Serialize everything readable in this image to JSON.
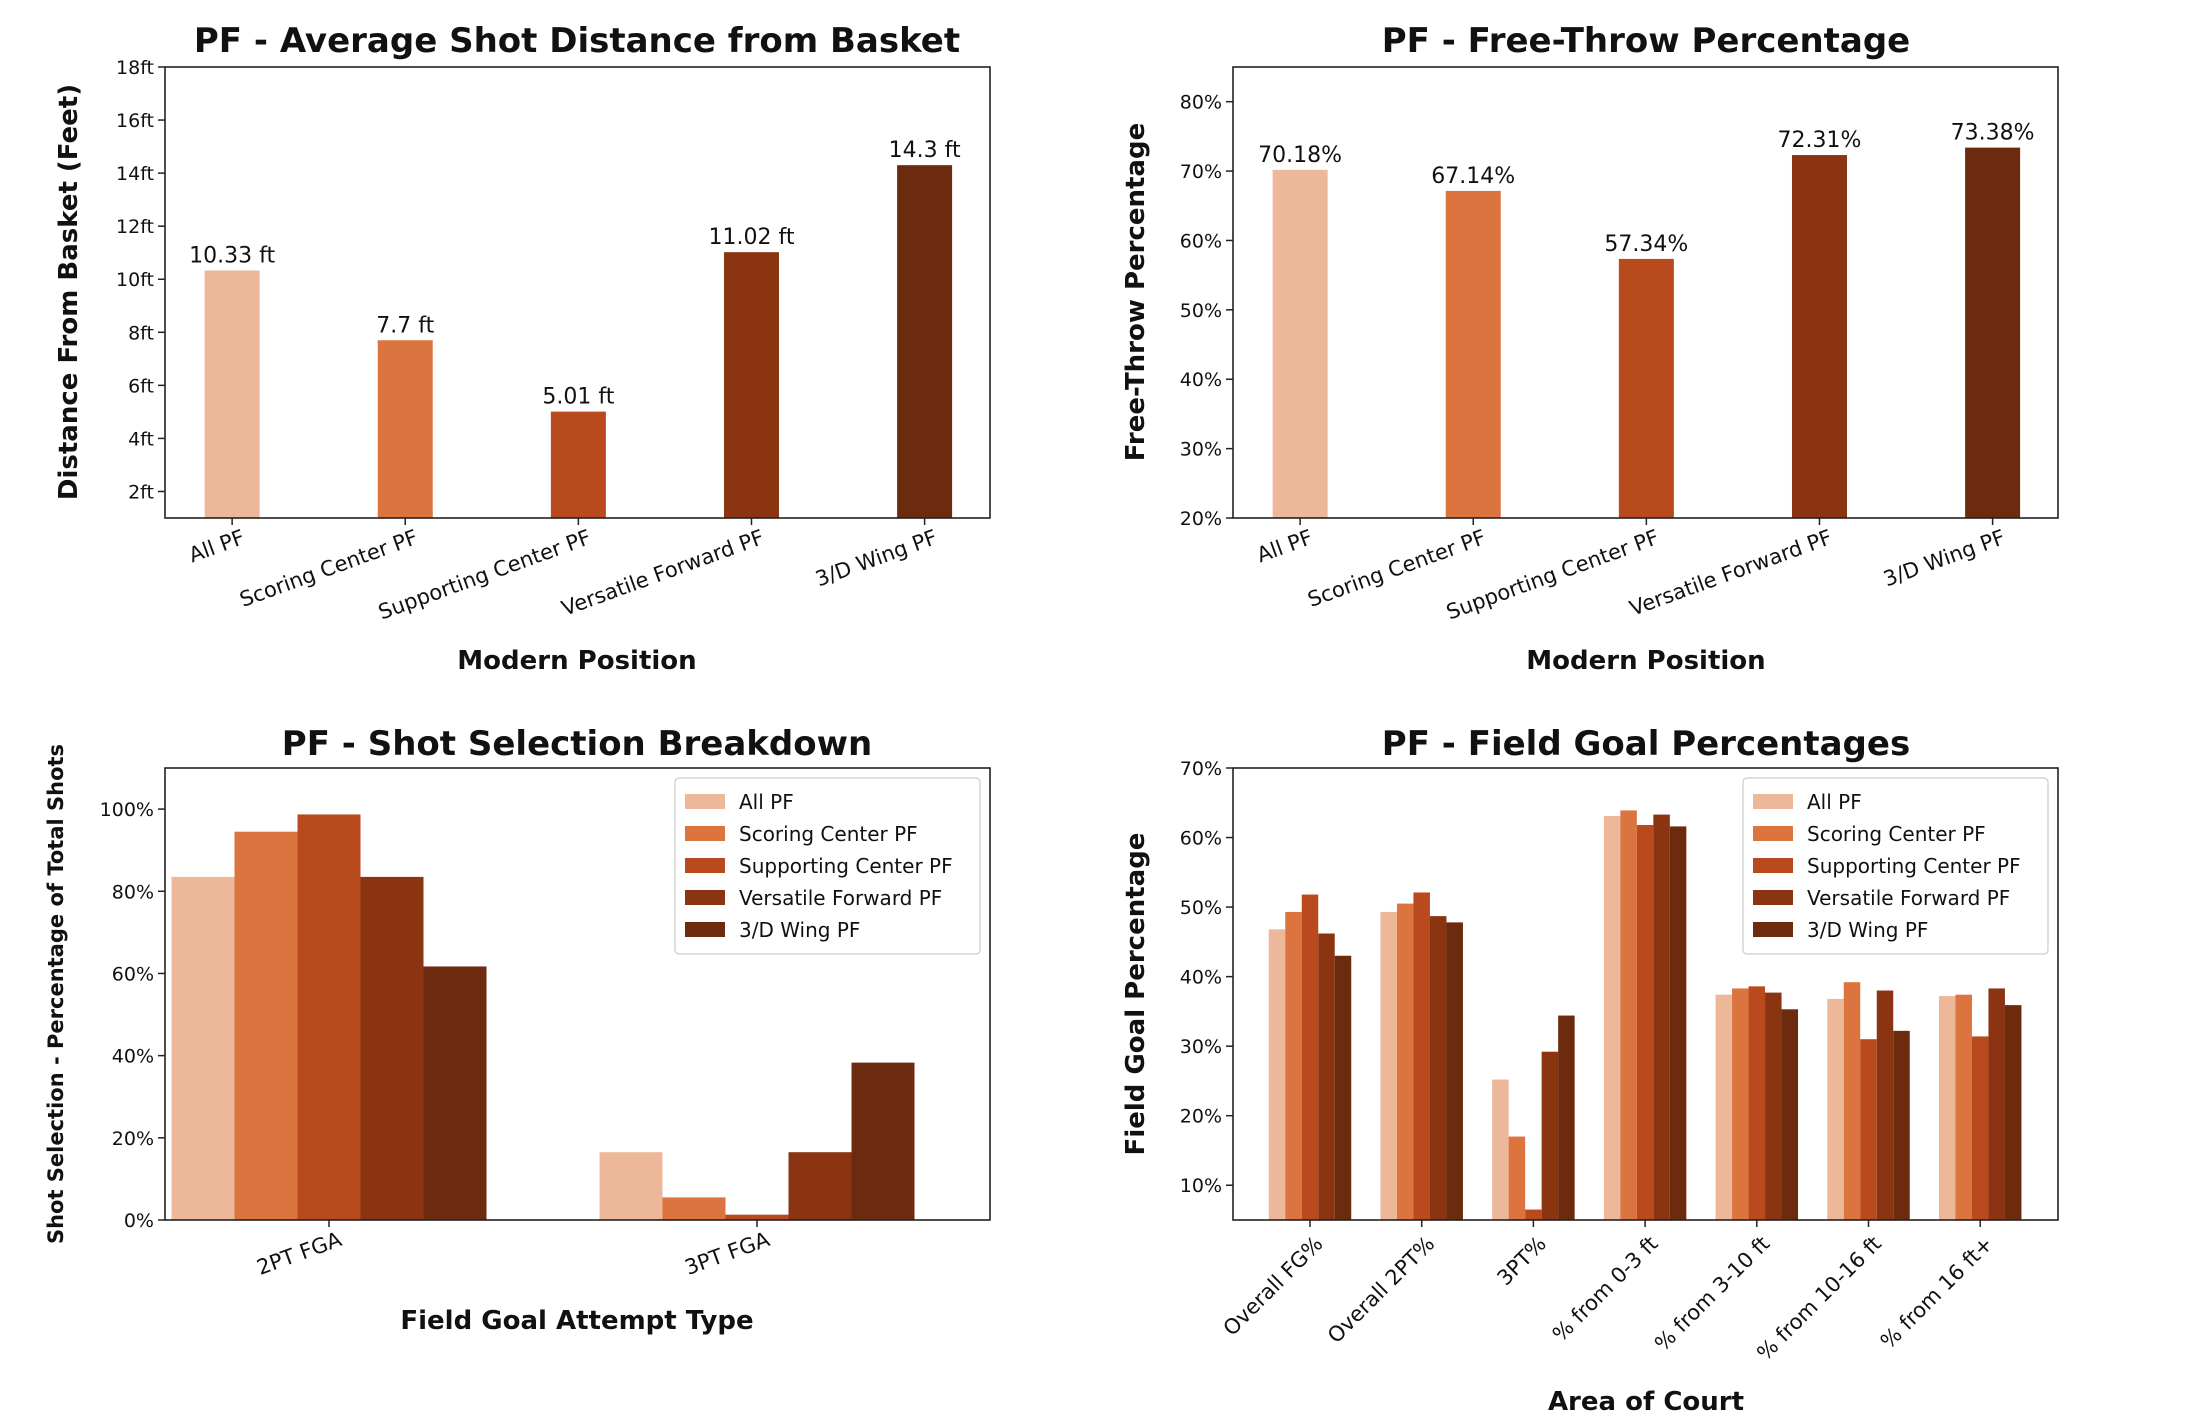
{
  "chart_data": [
    {
      "type": "bar",
      "title": "PF - Average Shot Distance from Basket",
      "xlabel": "Modern Position",
      "ylabel": "Distance From Basket (Feet)",
      "categories": [
        "All PF",
        "Scoring Center PF",
        "Supporting Center PF",
        "Versatile Forward PF",
        "3/D Wing PF"
      ],
      "values": [
        10.33,
        7.7,
        5.01,
        11.02,
        14.3
      ],
      "data_labels": [
        "10.33 ft",
        "7.7 ft",
        "5.01 ft",
        "11.02 ft",
        "14.3 ft"
      ],
      "ylim": [
        1,
        18
      ],
      "yticks": [
        2,
        4,
        6,
        8,
        10,
        12,
        14,
        16,
        18
      ],
      "ytick_labels": [
        "2ft",
        "4ft",
        "6ft",
        "8ft",
        "10ft",
        "12ft",
        "14ft",
        "16ft",
        "18ft"
      ],
      "colors": [
        "#edb899",
        "#dc743f",
        "#b84a1d",
        "#8a3412",
        "#6c2b0e"
      ],
      "grid": false
    },
    {
      "type": "bar",
      "title": "PF - Free-Throw Percentage",
      "xlabel": "Modern Position",
      "ylabel": "Free-Throw Percentage",
      "categories": [
        "All PF",
        "Scoring Center PF",
        "Supporting Center PF",
        "Versatile Forward PF",
        "3/D Wing PF"
      ],
      "values": [
        70.18,
        67.14,
        57.34,
        72.31,
        73.38
      ],
      "data_labels": [
        "70.18%",
        "67.14%",
        "57.34%",
        "72.31%",
        "73.38%"
      ],
      "ylim": [
        20,
        85
      ],
      "yticks": [
        20,
        30,
        40,
        50,
        60,
        70,
        80
      ],
      "ytick_labels": [
        "20%",
        "30%",
        "40%",
        "50%",
        "60%",
        "70%",
        "80%"
      ],
      "colors": [
        "#edb899",
        "#dc743f",
        "#b84a1d",
        "#8a3412",
        "#6c2b0e"
      ],
      "grid": false
    },
    {
      "type": "bar",
      "title": "PF - Shot Selection Breakdown",
      "xlabel": "Field Goal Attempt Type",
      "ylabel": "Shot Selection - Percentage of Total Shots",
      "categories": [
        "2PT FGA",
        "3PT FGA"
      ],
      "series": [
        {
          "name": "All PF",
          "values": [
            83.5,
            16.5
          ],
          "color": "#edb899"
        },
        {
          "name": "Scoring Center PF",
          "values": [
            94.5,
            5.5
          ],
          "color": "#dc743f"
        },
        {
          "name": "Supporting Center PF",
          "values": [
            98.7,
            1.3
          ],
          "color": "#b84a1d"
        },
        {
          "name": "Versatile Forward PF",
          "values": [
            83.5,
            16.5
          ],
          "color": "#8a3412"
        },
        {
          "name": "3/D Wing PF",
          "values": [
            61.7,
            38.3
          ],
          "color": "#6c2b0e"
        }
      ],
      "ylim": [
        0,
        110
      ],
      "yticks": [
        0,
        20,
        40,
        60,
        80,
        100
      ],
      "ytick_labels": [
        "0%",
        "20%",
        "40%",
        "60%",
        "80%",
        "100%"
      ],
      "legend": "top-right",
      "grid": false
    },
    {
      "type": "bar",
      "title": "PF - Field Goal Percentages",
      "xlabel": "Area of Court",
      "ylabel": "Field Goal Percentage",
      "categories": [
        "Overall FG%",
        "Overall 2PT%",
        "3PT%",
        "% from 0-3 ft",
        "% from 3-10 ft",
        "% from 10-16 ft",
        "% from 16 ft+"
      ],
      "series": [
        {
          "name": "All PF",
          "values": [
            46.8,
            49.3,
            25.2,
            63.1,
            37.4,
            36.8,
            37.2
          ],
          "color": "#edb899"
        },
        {
          "name": "Scoring Center PF",
          "values": [
            49.3,
            50.5,
            17.0,
            63.9,
            38.3,
            39.2,
            37.4
          ],
          "color": "#dc743f"
        },
        {
          "name": "Supporting Center PF",
          "values": [
            51.8,
            52.1,
            6.5,
            61.8,
            38.6,
            31.0,
            31.4
          ],
          "color": "#b84a1d"
        },
        {
          "name": "Versatile Forward PF",
          "values": [
            46.2,
            48.7,
            29.2,
            63.3,
            37.7,
            38.0,
            38.3
          ],
          "color": "#8a3412"
        },
        {
          "name": "3/D Wing PF",
          "values": [
            43.0,
            47.8,
            34.4,
            61.6,
            35.3,
            32.2,
            35.9
          ],
          "color": "#6c2b0e"
        }
      ],
      "ylim": [
        5,
        70
      ],
      "yticks": [
        10,
        20,
        30,
        40,
        50,
        60,
        70
      ],
      "ytick_labels": [
        "10%",
        "20%",
        "30%",
        "40%",
        "50%",
        "60%",
        "70%"
      ],
      "legend": "top-right",
      "grid": false
    }
  ]
}
